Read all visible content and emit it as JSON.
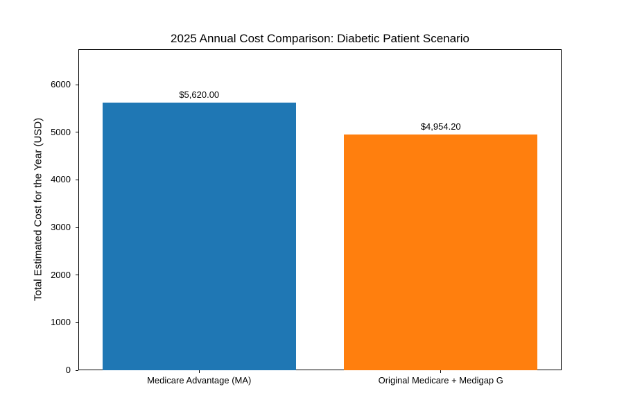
{
  "figure": {
    "background": "#ffffff",
    "text_color": "#000000",
    "spine_color": "#000000"
  },
  "chart_data": {
    "type": "bar",
    "title": "2025 Annual Cost Comparison: Diabetic Patient Scenario",
    "categories": [
      "Medicare Advantage (MA)",
      "Original Medicare + Medigap G"
    ],
    "values": [
      5620.0,
      4954.2
    ],
    "bar_value_labels": [
      "$5,620.00",
      "$4,954.20"
    ],
    "bar_colors": [
      "#1f77b4",
      "#ff7f0e"
    ],
    "xlabel": "",
    "ylabel": "Total Estimated Cost for the Year (USD)",
    "ylim": [
      0,
      6744
    ],
    "yticks": [
      0,
      1000,
      2000,
      3000,
      4000,
      5000,
      6000
    ],
    "bar_width_fraction": 0.8,
    "grid": false,
    "legend_position": "none"
  }
}
